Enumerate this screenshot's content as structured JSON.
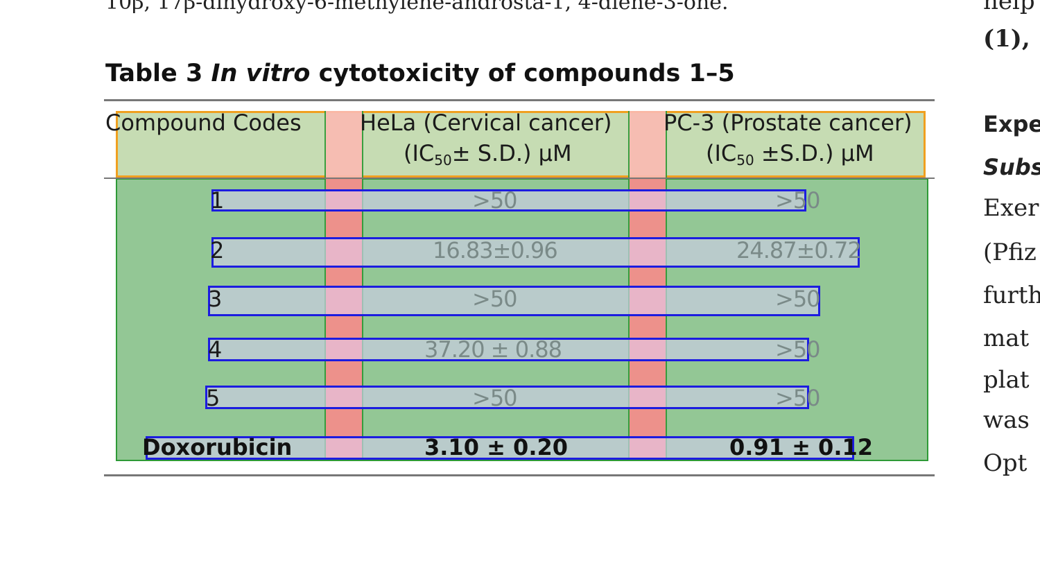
{
  "page": {
    "top_line": "10β, 17β-dihydroxy-6-methylene-androsta-1, 4-diene-3-one.",
    "right_lines": [
      "help",
      "(1),",
      "Expe",
      "Subs",
      "Exer",
      "(Pfiz",
      "furth",
      "mat",
      "plat",
      "was",
      "Opt"
    ]
  },
  "table": {
    "caption_prefix": "Table 3",
    "caption_italic": "In vitro",
    "caption_rest": "cytotoxicity of compounds 1–5",
    "headers": {
      "col1": "Compound Codes",
      "col2_line1": "HeLa (Cervical cancer)",
      "col2_line2_pre": "(IC",
      "col2_line2_sub": "50",
      "col2_line2_post": "± S.D.) μM",
      "col3_line1": "PC-3 (Prostate cancer)",
      "col3_line2_pre": "(IC",
      "col3_line2_sub": "50",
      "col3_line2_post": " ±S.D.) μM"
    },
    "rows": [
      {
        "code": "1",
        "hela": ">50",
        "pc3": ">50"
      },
      {
        "code": "2",
        "hela": "16.83±0.96",
        "pc3": "24.87±0.72"
      },
      {
        "code": "3",
        "hela": ">50",
        "pc3": ">50"
      },
      {
        "code": "4",
        "hela": "37.20 ± 0.88",
        "pc3": ">50"
      },
      {
        "code": "5",
        "hela": ">50",
        "pc3": ">50"
      },
      {
        "code": "Doxorubicin",
        "hela": "3.10 ± 0.20",
        "pc3": "0.91 ± 0.12"
      }
    ]
  },
  "colors": {
    "body_region": "#93c795",
    "header_region": "#c6dcb3",
    "header_border": "#f0a020",
    "gap_columns": "#f58d8b",
    "row_boxes": "#1c1ce0"
  }
}
